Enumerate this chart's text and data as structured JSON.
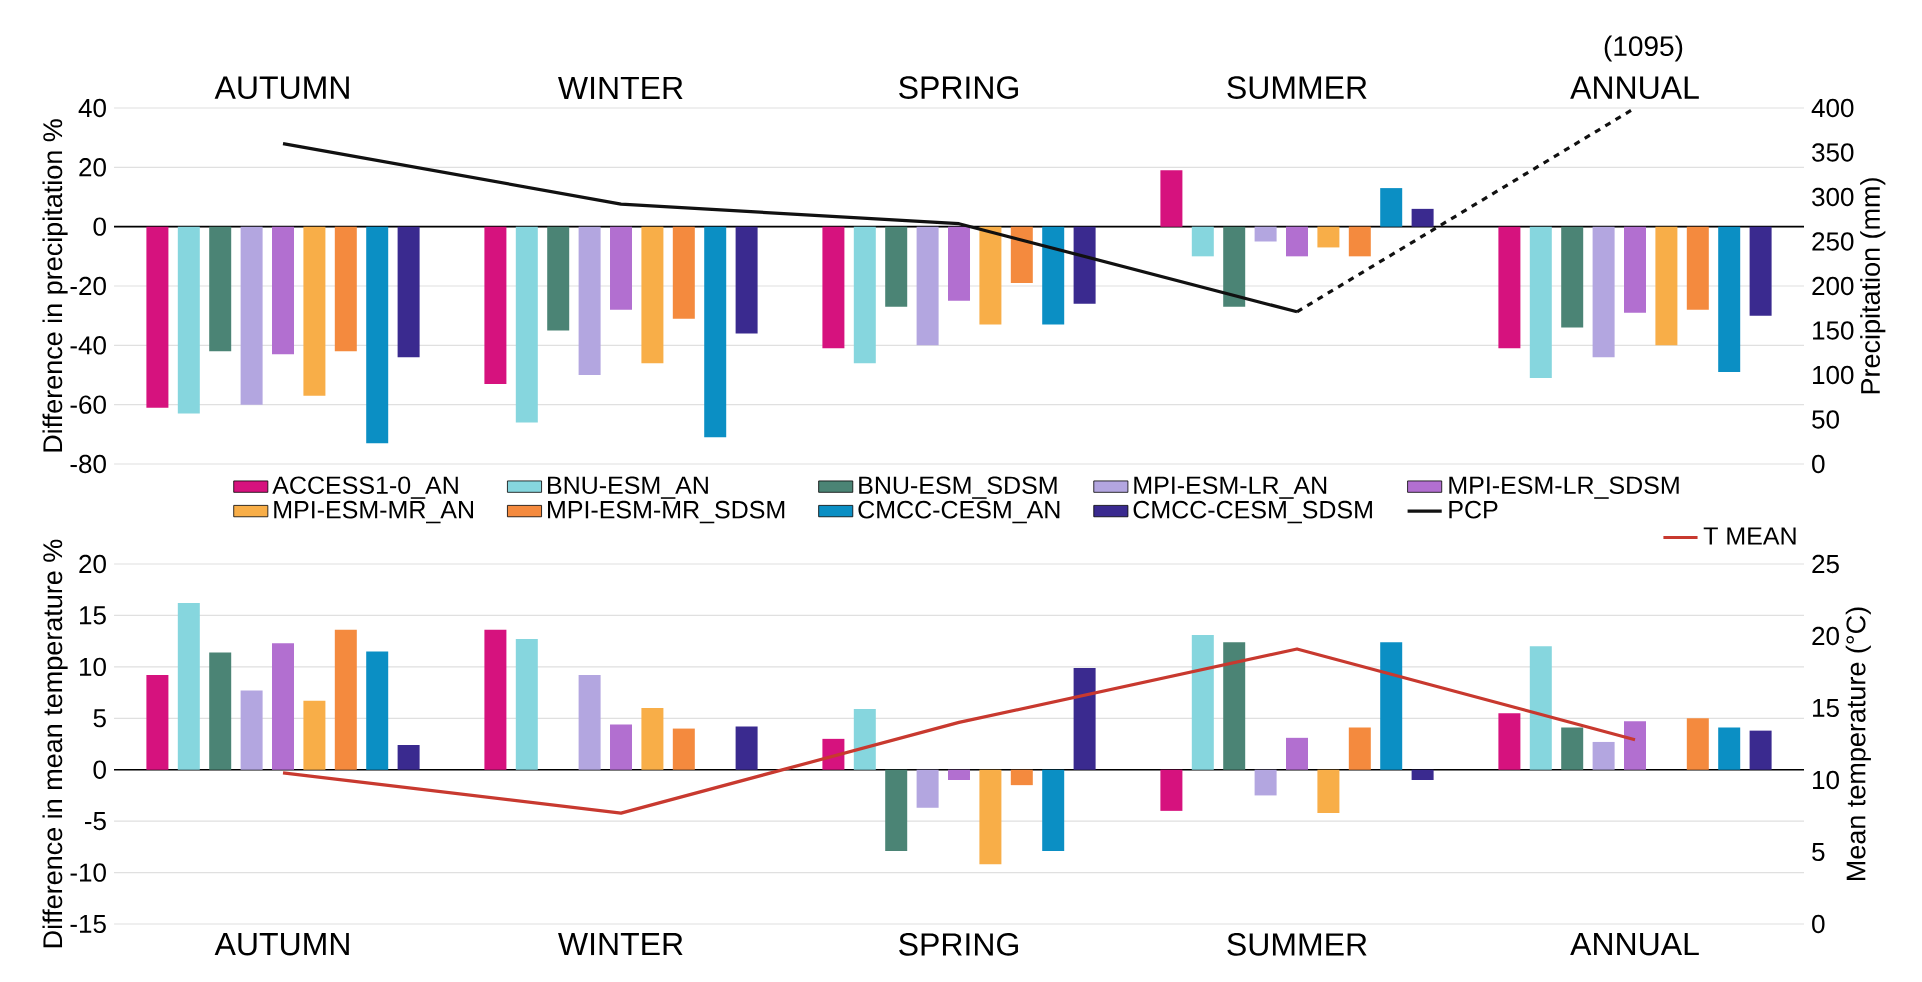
{
  "chart_data": [
    {
      "type": "bar",
      "ylabel": "Difference in precipitation %",
      "y2label": "Precipitation (mm)",
      "categories": [
        "AUTUMN",
        "WINTER",
        "SPRING",
        "SUMMER",
        "ANNUAL"
      ],
      "ylim": [
        -80,
        40
      ],
      "yticks": [
        -80,
        -60,
        -40,
        -20,
        0,
        20,
        40
      ],
      "y2lim": [
        0,
        400
      ],
      "y2ticks": [
        0,
        50,
        100,
        150,
        200,
        250,
        300,
        350,
        400
      ],
      "grid": "y",
      "legend": "bottom",
      "series": [
        {
          "name": "ACCESS1-0_AN",
          "color": "#d6127e",
          "values": [
            -61,
            -53,
            -41,
            19,
            -41
          ]
        },
        {
          "name": "BNU-ESM_AN",
          "color": "#86d6de",
          "values": [
            -63,
            -66,
            -46,
            -10,
            -51
          ]
        },
        {
          "name": "BNU-ESM_SDSM",
          "color": "#4b8475",
          "values": [
            -42,
            -35,
            -27,
            -27,
            -34
          ]
        },
        {
          "name": "MPI-ESM-LR_AN",
          "color": "#b3a6e0",
          "values": [
            -60,
            -50,
            -40,
            -5,
            -44
          ]
        },
        {
          "name": "MPI-ESM-LR_SDSM",
          "color": "#b26fd0",
          "values": [
            -43,
            -28,
            -25,
            -10,
            -29
          ]
        },
        {
          "name": "MPI-ESM-MR_AN",
          "color": "#f8ae48",
          "values": [
            -57,
            -46,
            -33,
            -7,
            -40
          ]
        },
        {
          "name": "MPI-ESM-MR_SDSM",
          "color": "#f48a3e",
          "values": [
            -42,
            -31,
            -19,
            -10,
            -28
          ]
        },
        {
          "name": "CMCC-CESM_AN",
          "color": "#0b8fc4",
          "values": [
            -73,
            -71,
            -33,
            13,
            -49
          ]
        },
        {
          "name": "CMCC-CESM_SDSM",
          "color": "#3a2a8f",
          "values": [
            -44,
            -36,
            -26,
            6,
            -30
          ]
        },
        {
          "name": "PCP",
          "type": "line",
          "axis": "y2",
          "color": "#111111",
          "values": [
            360,
            292,
            270,
            171,
            null
          ]
        },
        {
          "type": "line",
          "axis": "y2",
          "color": "#111111",
          "line_style": "dashed",
          "values": [
            null,
            null,
            null,
            171,
            400
          ]
        }
      ],
      "annotations": [
        "(1095)"
      ]
    },
    {
      "type": "bar",
      "ylabel": "Difference in mean temperature %",
      "y2label": "Mean temperature (°C)",
      "categories": [
        "AUTUMN",
        "WINTER",
        "SPRING",
        "SUMMER",
        "ANNUAL"
      ],
      "ylim": [
        -15,
        20
      ],
      "yticks": [
        -15,
        -10,
        -5,
        0,
        5,
        10,
        15,
        20
      ],
      "y2lim": [
        0,
        25
      ],
      "y2ticks": [
        0,
        5,
        10,
        15,
        20,
        25
      ],
      "grid": "y",
      "legend": "top right",
      "series": [
        {
          "color": "#d6127e",
          "values": [
            9.2,
            13.6,
            3.0,
            -4.0,
            5.5
          ]
        },
        {
          "color": "#86d6de",
          "values": [
            16.2,
            12.7,
            5.9,
            13.1,
            12.0
          ]
        },
        {
          "color": "#4b8475",
          "values": [
            11.4,
            null,
            -7.9,
            12.4,
            4.1
          ]
        },
        {
          "color": "#b3a6e0",
          "values": [
            7.7,
            9.2,
            -3.7,
            -2.5,
            2.7
          ]
        },
        {
          "color": "#b26fd0",
          "values": [
            12.3,
            4.4,
            -1.0,
            3.1,
            4.7
          ]
        },
        {
          "color": "#f8ae48",
          "values": [
            6.7,
            6.0,
            -9.2,
            -4.2,
            null
          ]
        },
        {
          "color": "#f48a3e",
          "values": [
            13.6,
            4.0,
            -1.5,
            4.1,
            5.0
          ]
        },
        {
          "color": "#0b8fc4",
          "values": [
            11.5,
            null,
            -7.9,
            12.4,
            4.1
          ]
        },
        {
          "color": "#3a2a8f",
          "values": [
            2.4,
            4.2,
            9.9,
            -1.0,
            3.8
          ]
        },
        {
          "name": "T MEAN",
          "type": "line",
          "axis": "y2",
          "color": "#c8392f",
          "values": [
            10.5,
            7.7,
            14.0,
            19.1,
            12.8
          ]
        }
      ]
    }
  ]
}
